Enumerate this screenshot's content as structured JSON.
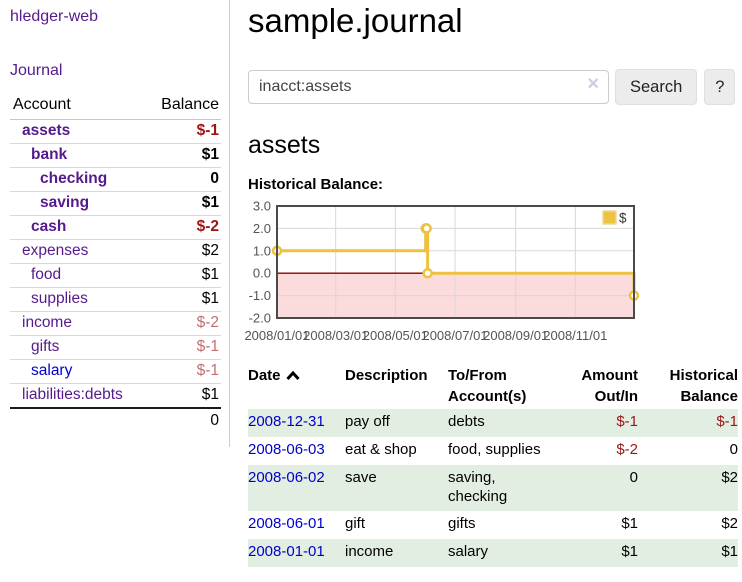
{
  "app": {
    "brand": "hledger-web"
  },
  "sidebar": {
    "journal_label": "Journal",
    "accounts_table": {
      "headers": {
        "account": "Account",
        "balance": "Balance"
      },
      "rows": [
        {
          "name": "assets",
          "balance": "$-1",
          "indent": 1,
          "bold": true,
          "balance_style": "neg-strong"
        },
        {
          "name": "bank",
          "balance": "$1",
          "indent": 2,
          "bold": true,
          "balance_style": "normal"
        },
        {
          "name": "checking",
          "balance": "0",
          "indent": 3,
          "bold": true,
          "balance_style": "normal"
        },
        {
          "name": "saving",
          "balance": "$1",
          "indent": 3,
          "bold": true,
          "balance_style": "normal"
        },
        {
          "name": "cash",
          "balance": "$-2",
          "indent": 2,
          "bold": true,
          "balance_style": "neg-strong"
        },
        {
          "name": "expenses",
          "balance": "$2",
          "indent": 1,
          "bold": false,
          "balance_style": "normal"
        },
        {
          "name": "food",
          "balance": "$1",
          "indent": 2,
          "bold": false,
          "balance_style": "normal"
        },
        {
          "name": "supplies",
          "balance": "$1",
          "indent": 2,
          "bold": false,
          "balance_style": "normal"
        },
        {
          "name": "income",
          "balance": "$-2",
          "indent": 1,
          "bold": false,
          "balance_style": "neg-muted"
        },
        {
          "name": "gifts",
          "balance": "$-1",
          "indent": 2,
          "bold": false,
          "balance_style": "neg-muted"
        },
        {
          "name": "salary",
          "balance": "$-1",
          "indent": 2,
          "bold": false,
          "balance_style": "neg-muted",
          "link_style": "blue"
        },
        {
          "name": "liabilities:debts",
          "balance": "$1",
          "indent": 1,
          "bold": false,
          "balance_style": "normal"
        }
      ],
      "total": "0"
    }
  },
  "header": {
    "title": "sample.journal"
  },
  "search": {
    "value": "inacct:assets",
    "clear_icon": "×",
    "button_label": "Search",
    "help_label": "?"
  },
  "account_page": {
    "title": "assets",
    "chart_label": "Historical Balance:"
  },
  "chart_data": {
    "type": "line",
    "title": "Historical Balance:",
    "step": true,
    "series": [
      {
        "name": "$",
        "color": "#EDC240",
        "points": [
          {
            "date": "2008-01-01",
            "day": 0,
            "value": 1
          },
          {
            "date": "2008-06-01",
            "day": 152,
            "value": 2
          },
          {
            "date": "2008-06-02",
            "day": 153,
            "value": 2
          },
          {
            "date": "2008-06-03",
            "day": 154,
            "value": 0
          },
          {
            "date": "2008-12-31",
            "day": 365,
            "value": -1
          }
        ]
      }
    ],
    "x_ticks": [
      {
        "label": "2008/01/01",
        "day": 0
      },
      {
        "label": "2008/03/01",
        "day": 60
      },
      {
        "label": "2008/05/01",
        "day": 121
      },
      {
        "label": "2008/07/01",
        "day": 182
      },
      {
        "label": "2008/09/01",
        "day": 244
      },
      {
        "label": "2008/11/01",
        "day": 305
      }
    ],
    "y_ticks": [
      {
        "label": "3.0",
        "value": 3
      },
      {
        "label": "2.0",
        "value": 2
      },
      {
        "label": "1.0",
        "value": 1
      },
      {
        "label": "0.0",
        "value": 0
      },
      {
        "label": "-1.0",
        "value": -1
      },
      {
        "label": "-2.0",
        "value": -2
      }
    ],
    "xlim_days": [
      0,
      365
    ],
    "ylim": [
      -2,
      3
    ],
    "grid": true,
    "colors": {
      "grid": "#d8d8d8",
      "border": "#4a4a4a",
      "axis_text": "#545454",
      "negative_region": "#FBDBDB",
      "zero_line": "#8B0000",
      "marker_fill": "#ffffff"
    },
    "legend": {
      "label": "$",
      "swatch": "#EDC240",
      "position": "top-right"
    }
  },
  "register_table": {
    "columns": [
      {
        "id": "date",
        "lines": [
          "Date"
        ],
        "align": "left",
        "sortable": true,
        "sort": "asc"
      },
      {
        "id": "description",
        "lines": [
          "Description"
        ],
        "align": "left"
      },
      {
        "id": "accounts",
        "lines": [
          "To/From",
          "Account(s)"
        ],
        "align": "left"
      },
      {
        "id": "amount",
        "lines": [
          "Amount",
          "Out/In"
        ],
        "align": "right"
      },
      {
        "id": "balance",
        "lines": [
          "Historical",
          "Balance"
        ],
        "align": "right"
      }
    ],
    "rows": [
      {
        "date": "2008-12-31",
        "description": "pay off",
        "accounts": [
          "debts"
        ],
        "amount": "$-1",
        "amount_negative": true,
        "balance": "$-1",
        "balance_negative": true
      },
      {
        "date": "2008-06-03",
        "description": "eat & shop",
        "accounts": [
          "food, supplies"
        ],
        "amount": "$-2",
        "amount_negative": true,
        "balance": "0",
        "balance_negative": false
      },
      {
        "date": "2008-06-02",
        "description": "save",
        "accounts": [
          "saving,",
          "checking"
        ],
        "amount": "0",
        "amount_negative": false,
        "balance": "$2",
        "balance_negative": false
      },
      {
        "date": "2008-06-01",
        "description": "gift",
        "accounts": [
          "gifts"
        ],
        "amount": "$1",
        "amount_negative": false,
        "balance": "$2",
        "balance_negative": false
      },
      {
        "date": "2008-01-01",
        "description": "income",
        "accounts": [
          "salary"
        ],
        "amount": "$1",
        "amount_negative": false,
        "balance": "$1",
        "balance_negative": false
      }
    ]
  },
  "colors": {
    "link_purple": "#551A8B",
    "link_blue": "#0000CC",
    "negative_strong": "#9B1515",
    "negative_muted": "#C17070",
    "row_green": "#E3EEE3"
  }
}
